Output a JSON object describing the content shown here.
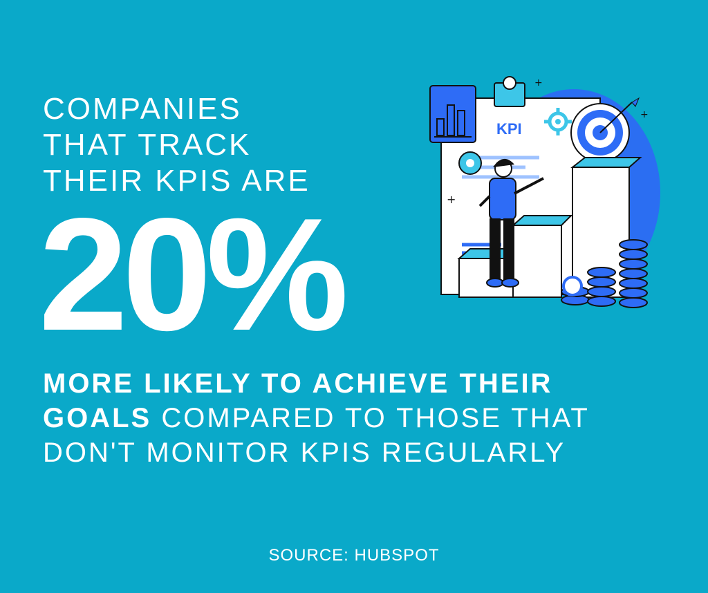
{
  "headline": {
    "intro_lines": [
      "COMPANIES",
      "THAT TRACK",
      "THEIR KPIS ARE"
    ],
    "stat_value": "20%"
  },
  "body": {
    "line1_bold": "MORE LIKELY TO ACHIEVE THEIR",
    "line2_bold": "GOALS",
    "line2_light": " COMPARED TO THOSE THAT",
    "line3_light": "DON'T MONITOR KPIS REGULARLY"
  },
  "source": {
    "text": "SOURCE: HUBSPOT"
  },
  "illustration": {
    "kpi_label": "KPI",
    "icons": {
      "clipboard": "clipboard-icon",
      "target": "target-icon",
      "gear": "gear-icon",
      "coin": "coin-icon",
      "person": "person-icon",
      "chart": "chart-icon"
    }
  },
  "colors": {
    "background": "#0aa9c9",
    "text": "#ffffff",
    "accent_blue": "#2e6cf6",
    "accent_cyan": "#3dc6e8",
    "outline": "#111111"
  }
}
